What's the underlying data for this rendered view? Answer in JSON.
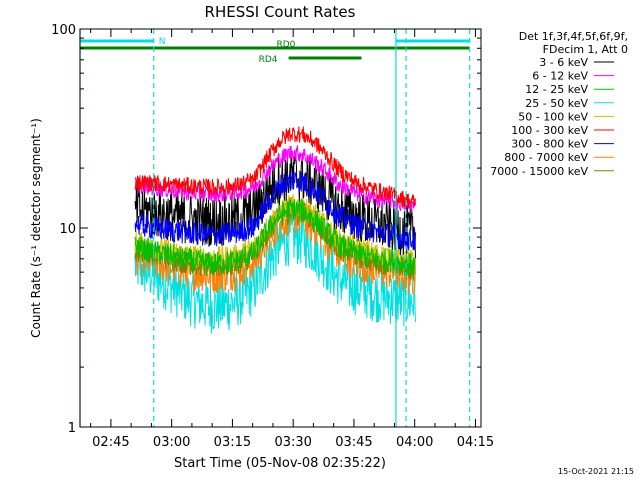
{
  "chart_data": {
    "type": "line",
    "title": "RHESSI Count Rates",
    "xlabel": "Start Time (05-Nov-08 02:35:22)",
    "ylabel": "Count Rate (s⁻¹ detector segment⁻¹)",
    "ylim": [
      1,
      100
    ],
    "yscale": "log",
    "xlim_minutes": [
      2.0,
      101.0
    ],
    "x_ticks": [
      "02:45",
      "03:00",
      "03:15",
      "03:30",
      "03:45",
      "04:00",
      "04:15"
    ],
    "x_tick_minutes": [
      9.63,
      24.63,
      39.63,
      54.63,
      69.63,
      84.63,
      99.63
    ],
    "y_ticks": [
      "1",
      "10",
      "100"
    ],
    "y_tick_values": [
      1,
      10,
      100
    ],
    "grid": false,
    "legend_placement": "right",
    "legend_header": [
      "Det 1f,3f,4f,5f,6f,9f,",
      "FDecim 1, Att 0"
    ],
    "timestamp": "15-Oct-2021 21:15",
    "data_start_minutes": 15.6,
    "data_end_minutes": 84.9,
    "series": [
      {
        "name": "3 - 6 keV",
        "color": "#000000",
        "x": [
          16,
          20,
          25,
          30,
          35,
          40,
          45,
          48,
          51,
          54,
          57,
          60,
          63,
          66,
          70,
          75,
          80,
          84
        ],
        "values": [
          12.5,
          12.0,
          11.5,
          11.0,
          10.8,
          11.0,
          12.0,
          15.0,
          17.5,
          18.5,
          18.0,
          16.5,
          14.5,
          12.5,
          11.5,
          10.5,
          10.0,
          9.5
        ]
      },
      {
        "name": "6 - 12 keV",
        "color": "#ff00ff",
        "x": [
          16,
          20,
          25,
          30,
          35,
          40,
          45,
          48,
          51,
          54,
          57,
          60,
          63,
          66,
          70,
          75,
          80,
          84
        ],
        "values": [
          16.5,
          16.0,
          15.5,
          15.0,
          14.8,
          15.0,
          16.0,
          19.0,
          22.0,
          24.0,
          23.5,
          21.5,
          19.0,
          16.5,
          15.0,
          14.0,
          13.5,
          13.0
        ]
      },
      {
        "name": "12 - 25 keV",
        "color": "#00c000",
        "x": [
          16,
          20,
          25,
          30,
          35,
          40,
          45,
          48,
          51,
          54,
          57,
          60,
          63,
          66,
          70,
          75,
          80,
          84
        ],
        "values": [
          8.0,
          7.6,
          7.2,
          6.8,
          6.6,
          6.8,
          7.5,
          9.5,
          11.5,
          12.5,
          12.2,
          11.0,
          9.5,
          8.2,
          7.5,
          7.0,
          6.8,
          6.5
        ]
      },
      {
        "name": "25 - 50 keV",
        "color": "#00e0e0",
        "x": [
          16,
          20,
          25,
          30,
          35,
          40,
          45,
          48,
          51,
          54,
          57,
          60,
          63,
          66,
          70,
          75,
          80,
          84
        ],
        "values": [
          6.5,
          5.8,
          5.0,
          4.3,
          4.0,
          4.2,
          5.0,
          6.5,
          8.0,
          9.0,
          8.8,
          7.8,
          6.5,
          5.5,
          5.0,
          4.6,
          4.4,
          4.3
        ]
      },
      {
        "name": "50 - 100 keV",
        "color": "#d0c000",
        "x": [
          16,
          20,
          25,
          30,
          35,
          40,
          45,
          48,
          51,
          54,
          57,
          60,
          63,
          66,
          70,
          75,
          80,
          84
        ],
        "values": [
          8.5,
          8.0,
          7.6,
          7.2,
          7.0,
          7.2,
          8.0,
          10.0,
          12.0,
          13.0,
          12.8,
          11.5,
          10.0,
          8.6,
          8.0,
          7.4,
          7.1,
          6.8
        ]
      },
      {
        "name": "100 - 300 keV",
        "color": "#ff0000",
        "x": [
          16,
          20,
          25,
          30,
          35,
          40,
          45,
          48,
          51,
          54,
          57,
          60,
          63,
          66,
          70,
          75,
          80,
          84
        ],
        "values": [
          17.0,
          16.8,
          16.5,
          16.2,
          16.0,
          16.2,
          17.5,
          22.0,
          27.0,
          30.0,
          29.5,
          27.0,
          23.0,
          19.5,
          17.0,
          15.5,
          14.5,
          13.5
        ]
      },
      {
        "name": "300 - 800 keV",
        "color": "#0000ff",
        "x": [
          16,
          20,
          25,
          30,
          35,
          40,
          45,
          48,
          51,
          54,
          57,
          60,
          63,
          66,
          70,
          75,
          80,
          84
        ],
        "values": [
          10.5,
          10.0,
          9.7,
          9.4,
          9.2,
          9.4,
          10.2,
          13.0,
          16.0,
          17.5,
          17.2,
          15.5,
          13.5,
          11.5,
          10.3,
          9.6,
          9.1,
          8.7
        ]
      },
      {
        "name": "800 - 7000 keV",
        "color": "#ff8000",
        "x": [
          16,
          20,
          25,
          30,
          35,
          40,
          45,
          48,
          51,
          54,
          57,
          60,
          63,
          66,
          70,
          75,
          80,
          84
        ],
        "values": [
          7.2,
          6.8,
          6.4,
          6.0,
          5.8,
          6.0,
          6.8,
          8.5,
          10.5,
          11.5,
          11.2,
          10.0,
          8.6,
          7.4,
          6.8,
          6.2,
          6.0,
          5.7
        ]
      },
      {
        "name": "7000 - 15000 keV",
        "color": "#808000",
        "x": [
          16,
          20,
          25,
          30,
          35,
          40,
          45,
          48,
          51,
          54,
          57,
          60,
          63,
          66,
          70,
          75,
          80,
          84
        ],
        "values": [
          7.8,
          7.4,
          7.0,
          6.6,
          6.4,
          6.6,
          7.3,
          9.2,
          11.2,
          12.2,
          11.9,
          10.8,
          9.2,
          7.9,
          7.3,
          6.8,
          6.5,
          6.2
        ]
      }
    ],
    "vertical_lines": [
      {
        "style": "solid",
        "color": "#00e0e0",
        "minutes": 2.0
      },
      {
        "style": "dashed",
        "color": "#00e0e0",
        "minutes": 20.2
      },
      {
        "style": "solid",
        "color": "#00e0e0",
        "minutes": 80.0
      },
      {
        "style": "dashed",
        "color": "#00e0e0",
        "minutes": 82.5
      },
      {
        "style": "dashed",
        "color": "#00e0e0",
        "minutes": 98.2
      }
    ],
    "state_bars": [
      {
        "label": "N",
        "color": "#00e0e0",
        "level": "top",
        "segments": [
          [
            2.0,
            20.2
          ],
          [
            80.0,
            98.2
          ]
        ]
      },
      {
        "label": "RD0",
        "color": "#008000",
        "level": "upper",
        "segments": [
          [
            2.0,
            71.5
          ],
          [
            71.5,
            98.2
          ]
        ]
      },
      {
        "label": "RD4",
        "color": "#008000",
        "level": "lower",
        "segments": [
          [
            53.5,
            71.5
          ]
        ]
      }
    ]
  }
}
